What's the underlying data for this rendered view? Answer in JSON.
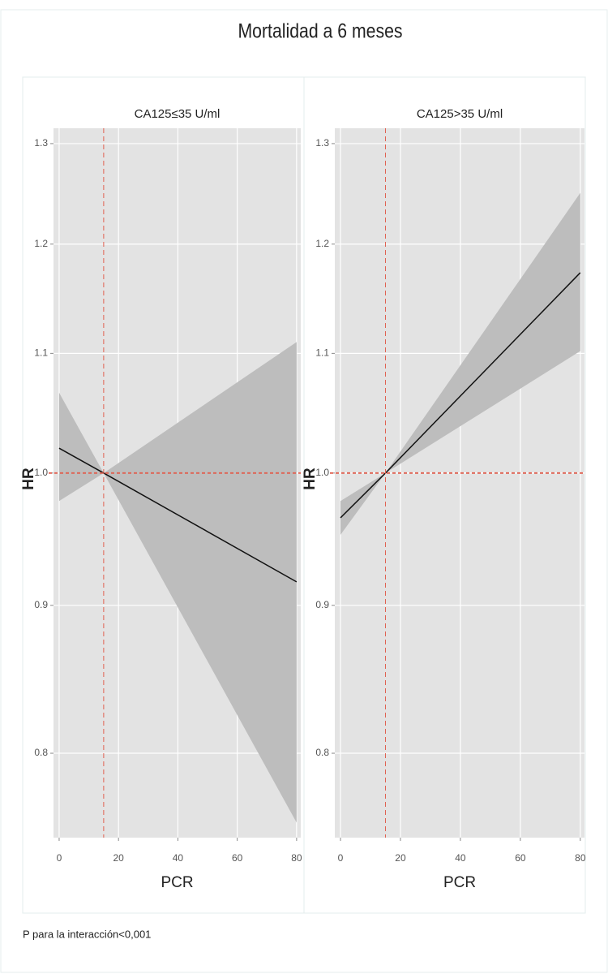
{
  "title": "Mortalidad a 6 meses",
  "note": "P para la interacción<0,001",
  "chart_data": [
    {
      "type": "line",
      "title": "CA125≤35 U/ml",
      "xlabel": "PCR",
      "ylabel": "HR",
      "x": [
        0,
        15,
        80
      ],
      "series": [
        {
          "color": "#111111",
          "values": [
            1.02,
            1.0,
            0.917
          ],
          "lower": [
            0.978,
            1.0,
            0.757
          ],
          "upper": [
            1.066,
            1.0,
            1.11
          ],
          "band_color": "#bdbdbd"
        }
      ],
      "xlim": [
        -1.9,
        81.4
      ],
      "xticks": [
        0,
        20,
        40,
        60,
        80
      ],
      "ylim": [
        0.748,
        1.316
      ],
      "yticks": [
        0.8,
        0.9,
        {
          "value": 1.0,
          "label": "1.0"
        },
        1.1,
        1.2,
        1.3
      ],
      "yscale": "log",
      "grid": true,
      "vline": 15,
      "hline": 1.0,
      "ref_color": "#e06050"
    },
    {
      "type": "line",
      "title": "CA125>35 U/ml",
      "xlabel": "PCR",
      "ylabel": "HR",
      "x": [
        0,
        15,
        80
      ],
      "series": [
        {
          "color": "#111111",
          "values": [
            0.965,
            1.0,
            1.173
          ],
          "lower": [
            0.952,
            1.0,
            1.102
          ],
          "upper": [
            0.978,
            1.0,
            1.25
          ],
          "band_color": "#bdbdbd"
        }
      ],
      "xlim": [
        -1.9,
        81.4
      ],
      "xticks": [
        0,
        20,
        40,
        60,
        80
      ],
      "ylim": [
        0.748,
        1.316
      ],
      "yticks": [
        0.8,
        0.9,
        {
          "value": 1.0,
          "label": "1.0"
        },
        1.1,
        1.2,
        1.3
      ],
      "yscale": "log",
      "grid": true,
      "vline": 15,
      "hline": 1.0,
      "ref_color": "#e06050"
    }
  ]
}
